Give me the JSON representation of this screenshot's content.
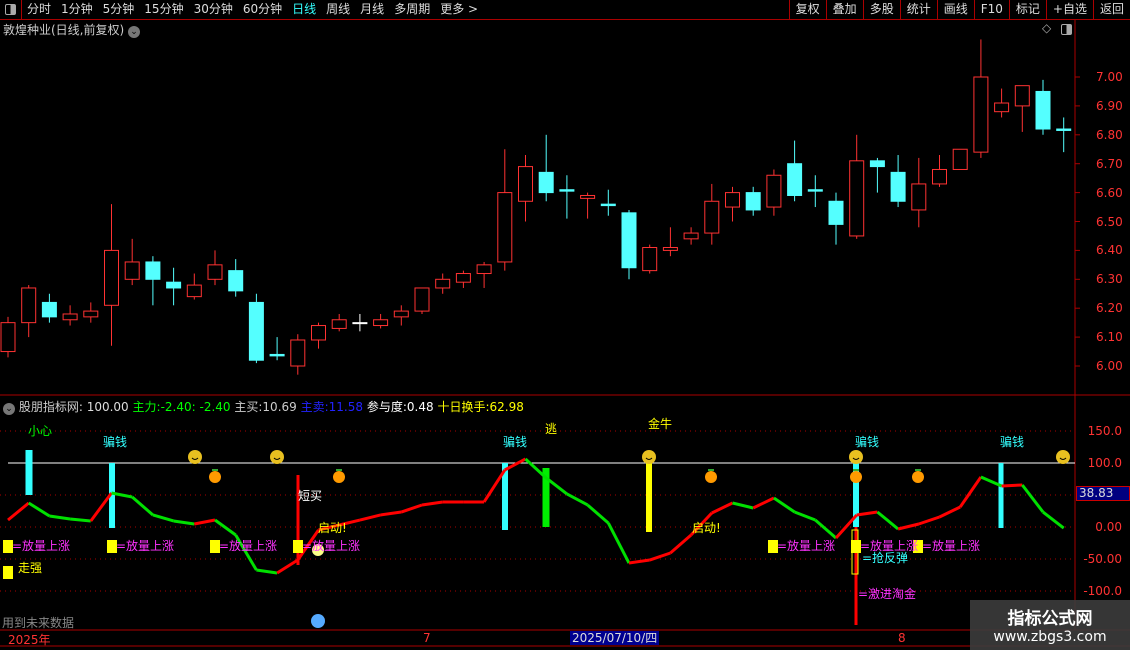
{
  "toolbar": {
    "left": [
      "分时",
      "1分钟",
      "5分钟",
      "15分钟",
      "30分钟",
      "60分钟",
      "日线",
      "周线",
      "月线",
      "多周期",
      "更多 >"
    ],
    "active": "日线",
    "right": [
      "复权",
      "叠加",
      "多股",
      "统计",
      "画线",
      "F10",
      "标记",
      "+自选",
      "返回"
    ]
  },
  "stock_title": "敦煌种业(日线,前复权)",
  "indicator_header": {
    "name": "股朋指标网",
    "v0": ": 100.00",
    "main_label": "主力:",
    "main_v1": "-2.40",
    "main_v2": ": -2.40",
    "buy_label": "主买:",
    "buy_v": "10.69",
    "sell_label": "主卖:",
    "sell_v": "11.58",
    "part_label": "参与度:",
    "part_v": "0.48",
    "turn_label": "十日换手:",
    "turn_v": "62.98"
  },
  "price_axis": [
    "7.00",
    "6.90",
    "6.80",
    "6.70",
    "6.60",
    "6.50",
    "6.40",
    "6.30",
    "6.20",
    "6.10",
    "6.00"
  ],
  "ind_axis": [
    "150.0",
    "100.0",
    "0.00",
    "-50.00",
    "-100.0"
  ],
  "ind_value_box": "38.83",
  "date_axis": {
    "year": "2025年",
    "m7": "7",
    "m8": "8",
    "cursor": "2025/07/10/四"
  },
  "labels": {
    "xiaoxin": "小心",
    "pianqian": "骗钱",
    "tao": "逃",
    "jinniu": "金牛",
    "duanmai": "短买",
    "qidong": "启动!",
    "fangliang": "=放量上涨",
    "zouqiang": "走强",
    "qiangfantan": "=抢反弹",
    "jijin": "=激进淘金",
    "future": "用到未来数据"
  },
  "watermark": {
    "line1": "指标公式网",
    "line2": "www.zbgs3.com"
  },
  "colors": {
    "up": "#ff3232",
    "down": "#54ffff",
    "line_up": "#ff0000",
    "line_down": "#00e000",
    "accent": "#00ffff",
    "frame": "#aa0000"
  },
  "chart_data": {
    "type": "candlestick",
    "ylim": [
      5.95,
      7.15
    ],
    "ohlc": [
      [
        6.05,
        6.17,
        6.03,
        6.15
      ],
      [
        6.15,
        6.28,
        6.1,
        6.27
      ],
      [
        6.22,
        6.25,
        6.15,
        6.17
      ],
      [
        6.16,
        6.21,
        6.14,
        6.18
      ],
      [
        6.17,
        6.22,
        6.15,
        6.19
      ],
      [
        6.21,
        6.56,
        6.07,
        6.4
      ],
      [
        6.3,
        6.44,
        6.28,
        6.36
      ],
      [
        6.36,
        6.38,
        6.21,
        6.3
      ],
      [
        6.29,
        6.34,
        6.21,
        6.27
      ],
      [
        6.24,
        6.32,
        6.23,
        6.28
      ],
      [
        6.3,
        6.4,
        6.28,
        6.35
      ],
      [
        6.33,
        6.37,
        6.24,
        6.26
      ],
      [
        6.22,
        6.25,
        6.01,
        6.02
      ],
      [
        6.04,
        6.1,
        6.02,
        6.035
      ],
      [
        6.0,
        6.11,
        5.97,
        6.09
      ],
      [
        6.09,
        6.15,
        6.06,
        6.14
      ],
      [
        6.13,
        6.18,
        6.12,
        6.16
      ],
      [
        6.15,
        6.18,
        6.12,
        6.15
      ],
      [
        6.14,
        6.18,
        6.13,
        6.16
      ],
      [
        6.17,
        6.21,
        6.14,
        6.19
      ],
      [
        6.19,
        6.27,
        6.18,
        6.27
      ],
      [
        6.27,
        6.32,
        6.25,
        6.3
      ],
      [
        6.29,
        6.33,
        6.27,
        6.32
      ],
      [
        6.32,
        6.36,
        6.27,
        6.35
      ],
      [
        6.36,
        6.75,
        6.33,
        6.6
      ],
      [
        6.57,
        6.73,
        6.5,
        6.69
      ],
      [
        6.67,
        6.8,
        6.57,
        6.6
      ],
      [
        6.61,
        6.66,
        6.51,
        6.605
      ],
      [
        6.58,
        6.6,
        6.51,
        6.59
      ],
      [
        6.56,
        6.61,
        6.52,
        6.555
      ],
      [
        6.53,
        6.54,
        6.3,
        6.34
      ],
      [
        6.33,
        6.42,
        6.32,
        6.41
      ],
      [
        6.4,
        6.48,
        6.38,
        6.41
      ],
      [
        6.44,
        6.48,
        6.42,
        6.46
      ],
      [
        6.46,
        6.63,
        6.42,
        6.57
      ],
      [
        6.55,
        6.62,
        6.5,
        6.6
      ],
      [
        6.6,
        6.62,
        6.52,
        6.54
      ],
      [
        6.55,
        6.68,
        6.52,
        6.66
      ],
      [
        6.7,
        6.78,
        6.57,
        6.59
      ],
      [
        6.61,
        6.66,
        6.55,
        6.605
      ],
      [
        6.57,
        6.6,
        6.42,
        6.49
      ],
      [
        6.45,
        6.8,
        6.44,
        6.71
      ],
      [
        6.71,
        6.72,
        6.6,
        6.69
      ],
      [
        6.67,
        6.73,
        6.55,
        6.57
      ],
      [
        6.54,
        6.72,
        6.48,
        6.63
      ],
      [
        6.63,
        6.73,
        6.62,
        6.68
      ],
      [
        6.68,
        6.75,
        6.68,
        6.75
      ],
      [
        6.74,
        7.13,
        6.72,
        7.0
      ],
      [
        6.88,
        6.96,
        6.86,
        6.91
      ],
      [
        6.9,
        6.97,
        6.81,
        6.97
      ],
      [
        6.95,
        6.99,
        6.8,
        6.82
      ],
      [
        6.82,
        6.86,
        6.74,
        6.815
      ]
    ],
    "indicator": {
      "ylim": [
        -100,
        150
      ],
      "ref_line": 100,
      "values": [
        10.9,
        37.5,
        17.2,
        12.5,
        9.4,
        53.1,
        46.9,
        18.8,
        9.4,
        4.7,
        10.9,
        -12.5,
        -67.2,
        -71.9,
        -51.6,
        -4.7,
        3.1,
        10.9,
        18.8,
        23.4,
        34.4,
        39.1,
        39.1,
        39.1,
        89.1,
        106.3,
        76.6,
        51.6,
        34.4,
        6.3,
        -56.3,
        -51.6,
        -40.6,
        -12.5,
        21.9,
        37.5,
        29.7,
        45.3,
        23.4,
        10.9,
        -17.2,
        18.8,
        23.4,
        -3.1,
        4.7,
        15.6,
        31.3,
        78.1,
        64.1,
        65.6,
        23.4,
        -1.6
      ]
    }
  }
}
